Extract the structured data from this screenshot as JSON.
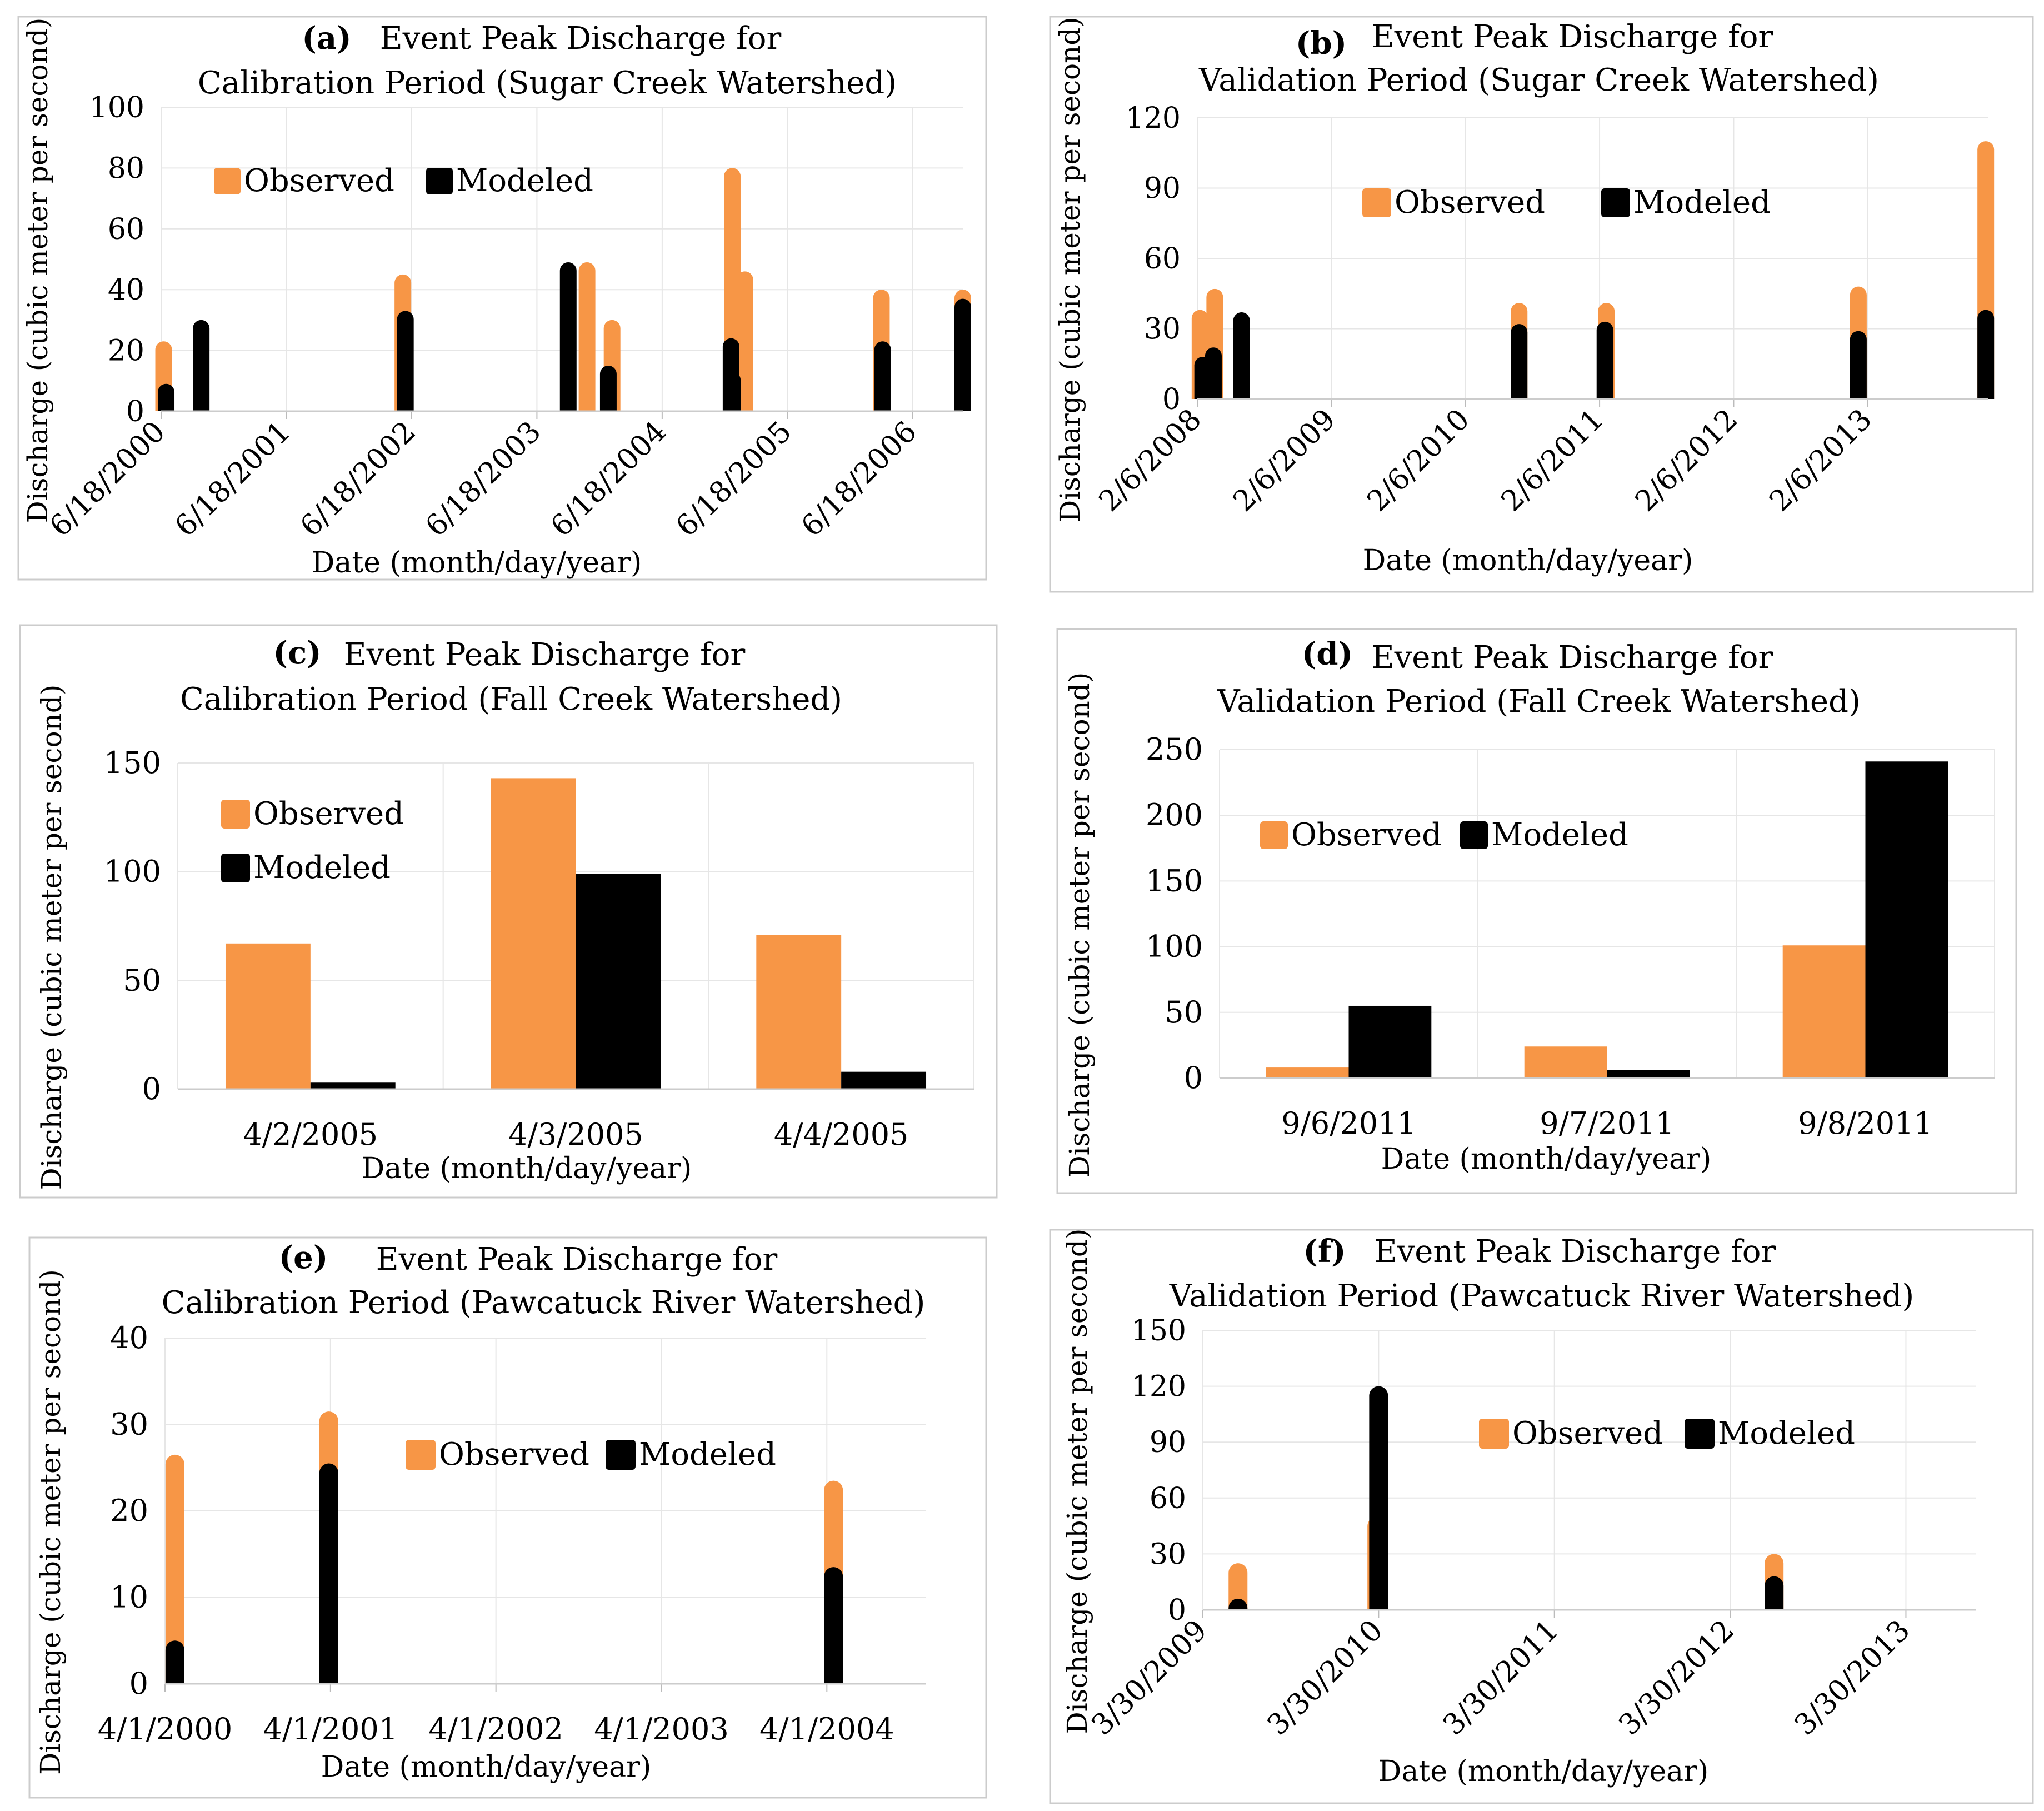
{
  "colors": {
    "observed": "#F79646",
    "modeled": "#000000",
    "grid": "#E6E6E6",
    "frame": "#CCCCCC"
  },
  "chart_data": [
    {
      "id": "a",
      "type": "bar",
      "x_type": "time",
      "panel_label": "(a)",
      "title_line1": "Event Peak Discharge for",
      "title_line2": "Calibration Period (Sugar Creek Watershed)",
      "xlabel": "Date (month/day/year)",
      "ylabel": "Discharge (cubic meter per second)",
      "ylim": [
        0,
        100
      ],
      "yticks": [
        0,
        20,
        40,
        60,
        80,
        100
      ],
      "xlim": [
        0,
        6.4
      ],
      "xticks": [
        0,
        1,
        2,
        3,
        4,
        5,
        6
      ],
      "xtick_labels": [
        "6/18/2000",
        "6/18/2001",
        "6/18/2002",
        "6/18/2003",
        "6/18/2004",
        "6/18/2005",
        "6/18/2006"
      ],
      "legend": [
        "Observed",
        "Modeled"
      ],
      "observed_points": [
        [
          0.02,
          23
        ],
        [
          1.93,
          45
        ],
        [
          3.4,
          49
        ],
        [
          3.6,
          30
        ],
        [
          4.56,
          80
        ],
        [
          4.66,
          46
        ],
        [
          5.75,
          40
        ],
        [
          6.4,
          40
        ]
      ],
      "modeled_points": [
        [
          0.04,
          9
        ],
        [
          0.32,
          30
        ],
        [
          1.95,
          33
        ],
        [
          3.25,
          49
        ],
        [
          3.57,
          15
        ],
        [
          4.55,
          24
        ],
        [
          4.56,
          13
        ],
        [
          5.76,
          23
        ],
        [
          6.4,
          37
        ]
      ]
    },
    {
      "id": "b",
      "type": "bar",
      "x_type": "time",
      "panel_label": "(b)",
      "title_line1": "Event Peak Discharge for",
      "title_line2": "Validation Period (Sugar Creek Watershed)",
      "xlabel": "Date (month/day/year)",
      "ylabel": "Discharge (cubic meter per second)",
      "ylim": [
        0,
        120
      ],
      "yticks": [
        0,
        30,
        60,
        90,
        120
      ],
      "xlim": [
        0,
        5.9
      ],
      "xticks": [
        0,
        1,
        2,
        3,
        4,
        5
      ],
      "xtick_labels": [
        "2/6/2008",
        "2/6/2009",
        "2/6/2010",
        "2/6/2011",
        "2/6/2012",
        "2/6/2013"
      ],
      "legend": [
        "Observed",
        "Modeled"
      ],
      "observed_points": [
        [
          0.02,
          38
        ],
        [
          0.13,
          47
        ],
        [
          2.4,
          41
        ],
        [
          3.05,
          41
        ],
        [
          4.93,
          48
        ],
        [
          5.88,
          110
        ]
      ],
      "modeled_points": [
        [
          0.04,
          18
        ],
        [
          0.12,
          22
        ],
        [
          0.33,
          37
        ],
        [
          2.4,
          32
        ],
        [
          3.04,
          33
        ],
        [
          4.93,
          29
        ],
        [
          5.88,
          38
        ]
      ]
    },
    {
      "id": "c",
      "type": "bar",
      "x_type": "category",
      "panel_label": "(c)",
      "title_line1": "Event Peak Discharge for",
      "title_line2": "Calibration Period (Fall Creek Watershed)",
      "xlabel": "Date (month/day/year)",
      "ylabel": "Discharge (cubic meter per second)",
      "ylim": [
        0,
        150
      ],
      "yticks": [
        0,
        50,
        100,
        150
      ],
      "categories": [
        "4/2/2005",
        "4/3/2005",
        "4/4/2005"
      ],
      "legend": [
        "Observed",
        "Modeled"
      ],
      "series": [
        {
          "name": "Observed",
          "values": [
            67,
            143,
            71
          ]
        },
        {
          "name": "Modeled",
          "values": [
            3,
            99,
            8
          ]
        }
      ]
    },
    {
      "id": "d",
      "type": "bar",
      "x_type": "category",
      "panel_label": "(d)",
      "title_line1": "Event Peak Discharge for",
      "title_line2": "Validation Period (Fall Creek Watershed)",
      "xlabel": "Date (month/day/year)",
      "ylabel": "Discharge (cubic meter per second)",
      "ylim": [
        0,
        250
      ],
      "yticks": [
        0,
        50,
        100,
        150,
        200,
        250
      ],
      "categories": [
        "9/6/2011",
        "9/7/2011",
        "9/8/2011"
      ],
      "legend": [
        "Observed",
        "Modeled"
      ],
      "series": [
        {
          "name": "Observed",
          "values": [
            8,
            24,
            101
          ]
        },
        {
          "name": "Modeled",
          "values": [
            55,
            6,
            241
          ]
        }
      ]
    },
    {
      "id": "e",
      "type": "bar",
      "x_type": "time",
      "panel_label": "(e)",
      "title_line1": "Event Peak Discharge for",
      "title_line2": "Calibration Period (Pawcatuck River Watershed)",
      "xlabel": "Date (month/day/year)",
      "ylabel": "Discharge (cubic meter per second)",
      "ylim": [
        0,
        40
      ],
      "yticks": [
        0,
        10,
        20,
        30,
        40
      ],
      "xlim": [
        0,
        4.6
      ],
      "xticks": [
        0,
        1,
        2,
        3,
        4
      ],
      "xtick_labels": [
        "4/1/2000",
        "4/1/2001",
        "4/1/2002",
        "4/1/2003",
        "4/1/2004"
      ],
      "legend": [
        "Observed",
        "Modeled"
      ],
      "observed_points": [
        [
          0.06,
          26.5
        ],
        [
          0.99,
          31.5
        ],
        [
          4.04,
          23.5
        ]
      ],
      "modeled_points": [
        [
          0.06,
          5
        ],
        [
          0.99,
          25.5
        ],
        [
          4.04,
          13.5
        ]
      ]
    },
    {
      "id": "f",
      "type": "bar",
      "x_type": "time",
      "panel_label": "(f)",
      "title_line1": "Event Peak Discharge for",
      "title_line2": "Validation Period (Pawcatuck River Watershed)",
      "xlabel": "Date (month/day/year)",
      "ylabel": "Discharge (cubic meter per second)",
      "ylim": [
        0,
        150
      ],
      "yticks": [
        0,
        30,
        60,
        90,
        120,
        150
      ],
      "xlim": [
        0,
        4.4
      ],
      "xticks": [
        0,
        1,
        2,
        3,
        4
      ],
      "xtick_labels": [
        "3/30/2009",
        "3/30/2010",
        "3/30/2011",
        "3/30/2012",
        "3/30/2013"
      ],
      "legend": [
        "Observed",
        "Modeled"
      ],
      "observed_points": [
        [
          0.2,
          25
        ],
        [
          0.99,
          50
        ],
        [
          3.25,
          30
        ]
      ],
      "modeled_points": [
        [
          0.2,
          6
        ],
        [
          1.0,
          120
        ],
        [
          3.25,
          18
        ]
      ]
    }
  ]
}
